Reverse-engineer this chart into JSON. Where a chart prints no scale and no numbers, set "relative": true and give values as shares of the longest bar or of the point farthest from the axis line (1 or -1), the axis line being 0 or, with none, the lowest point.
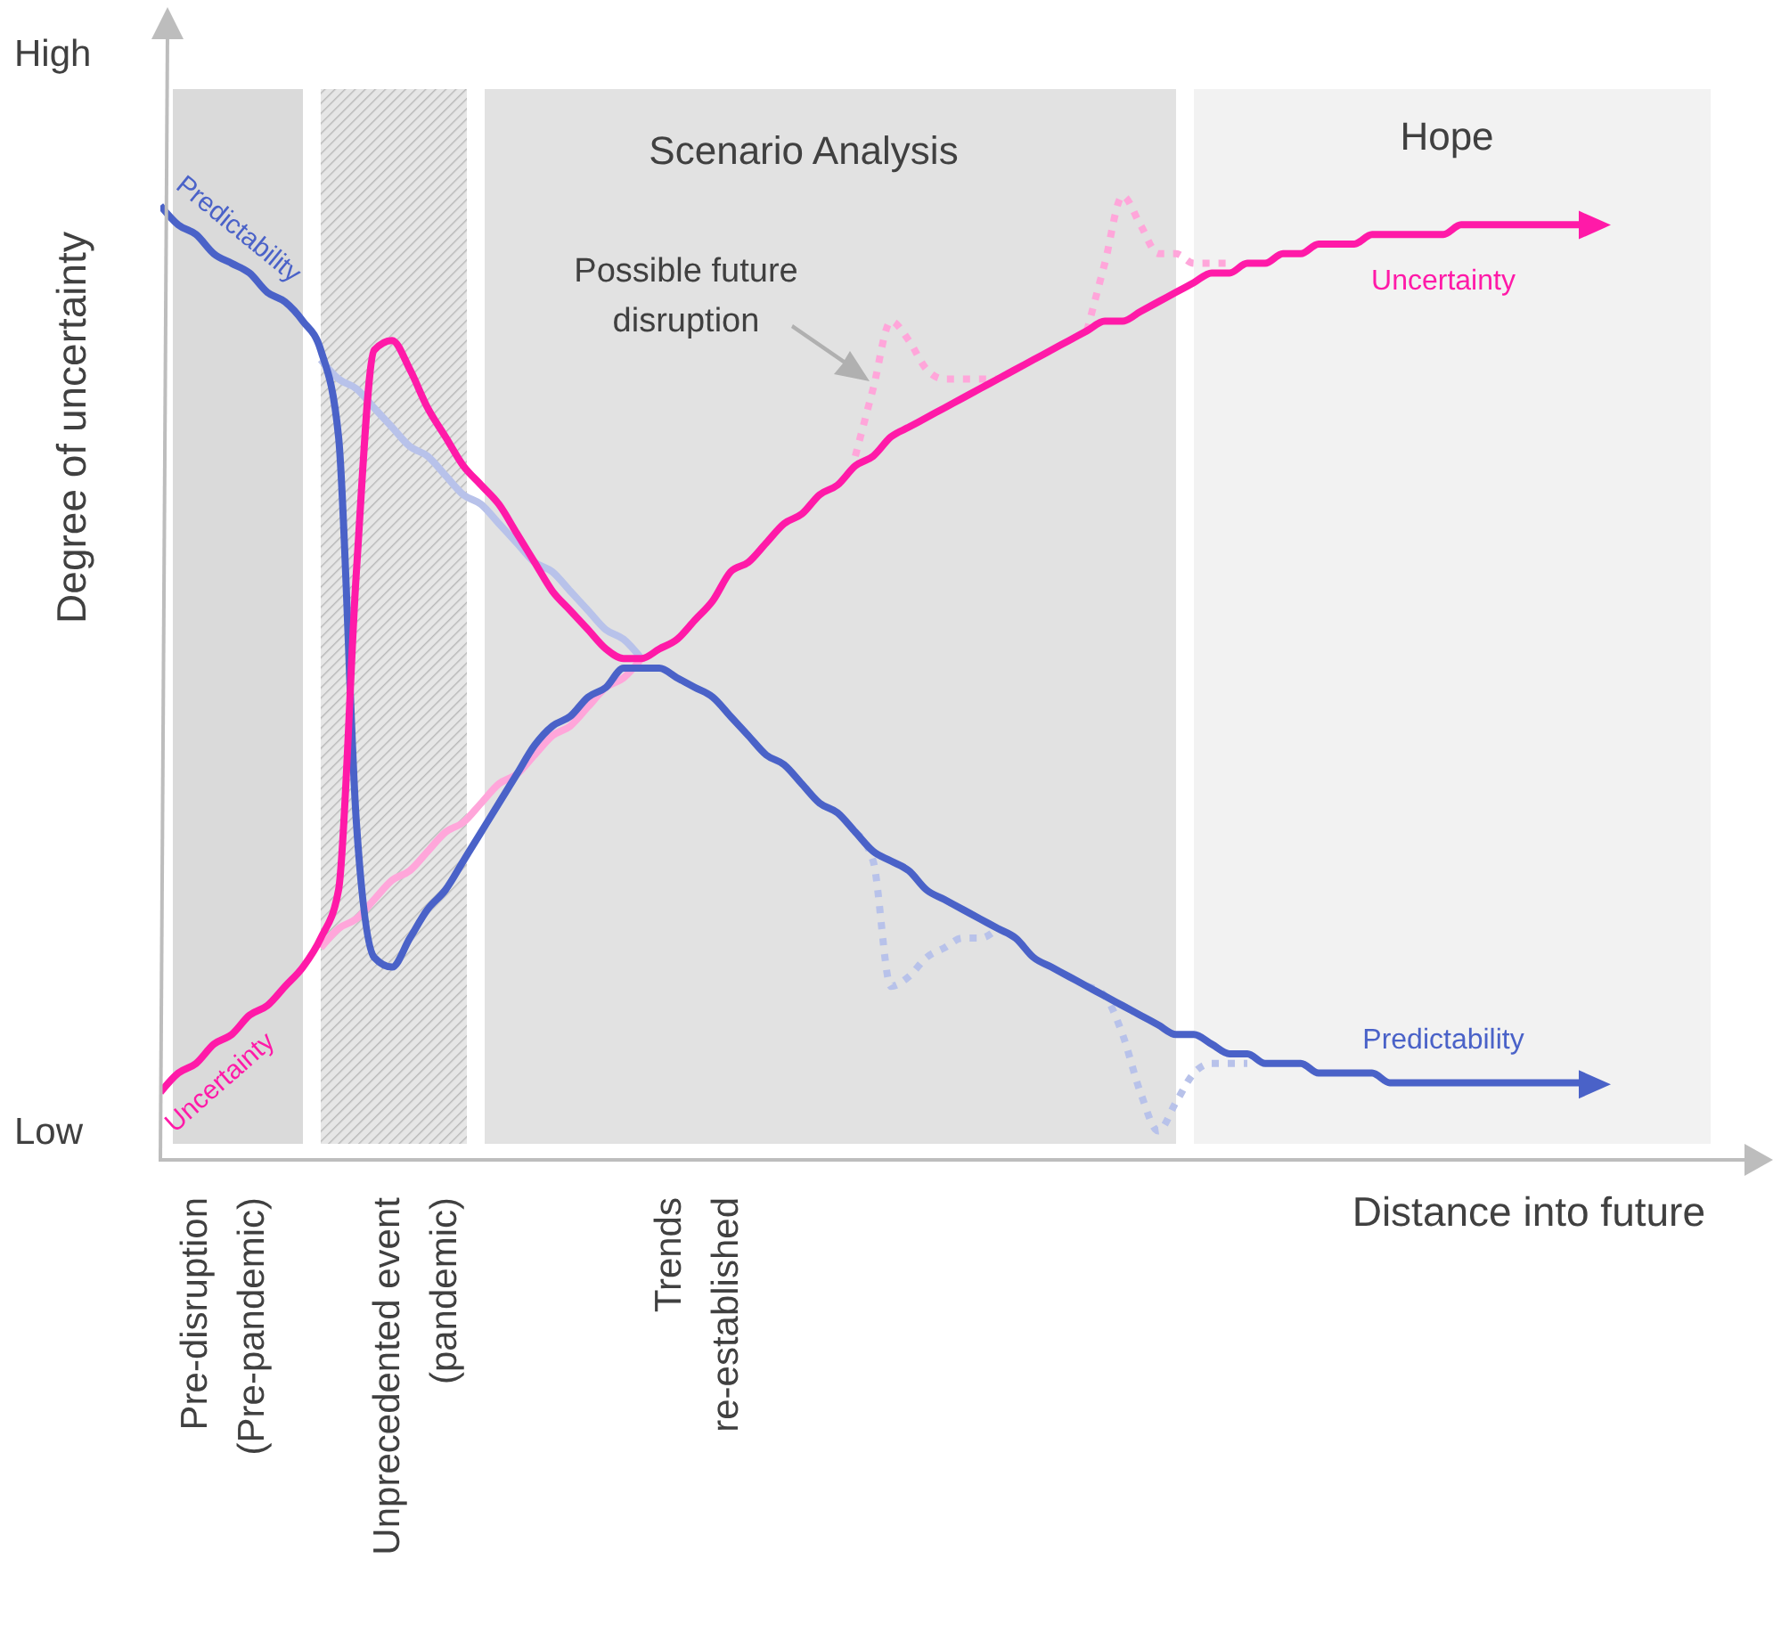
{
  "chart_data": {
    "type": "line",
    "relative": true,
    "xlabel": "Distance into future",
    "ylabel": "Degree of uncertainty",
    "categories": [
      null,
      null,
      null,
      null,
      null,
      null,
      null,
      null,
      null,
      null,
      null,
      null,
      null,
      null,
      null,
      null,
      null,
      null,
      null,
      null,
      null,
      null,
      null,
      null,
      null,
      null,
      null,
      null,
      null,
      null,
      null,
      null,
      null,
      null,
      null,
      null,
      null,
      null,
      null,
      null,
      null,
      null,
      null,
      null,
      null,
      null,
      null,
      null,
      null,
      null,
      null,
      null,
      null,
      null,
      null,
      null,
      null,
      null,
      null,
      null,
      null,
      null,
      null,
      null,
      null,
      null,
      null,
      null,
      null,
      null,
      null,
      null,
      null,
      null,
      null,
      null,
      null,
      null,
      null,
      null,
      null
    ],
    "series": [
      {
        "color": "#b8c2ea",
        "values": [
          null,
          null,
          null,
          null,
          null,
          null,
          null,
          null,
          null,
          0.83,
          0.81,
          0.8,
          0.78,
          0.76,
          0.74,
          0.73,
          0.71,
          0.69,
          0.68,
          0.66,
          0.64,
          0.62,
          0.61,
          0.59,
          0.57,
          0.55,
          0.54,
          0.52,
          null,
          null,
          null,
          null,
          null,
          null,
          null,
          null,
          null,
          null,
          null,
          null,
          null,
          null,
          null,
          null,
          null,
          null,
          null,
          null,
          null,
          null,
          null,
          null,
          null,
          null,
          null,
          null,
          null,
          null,
          null,
          null,
          null,
          null,
          null,
          null,
          null,
          null,
          null,
          null,
          null,
          null,
          null,
          null,
          null,
          null,
          null,
          null,
          null,
          null,
          null,
          null,
          null
        ]
      },
      {
        "color": "#ffa6da",
        "values": [
          null,
          null,
          null,
          null,
          null,
          null,
          null,
          null,
          null,
          0.22,
          0.24,
          0.25,
          0.27,
          0.29,
          0.3,
          0.32,
          0.34,
          0.35,
          0.37,
          0.39,
          0.4,
          0.42,
          0.44,
          0.45,
          0.47,
          0.49,
          0.5,
          0.52,
          null,
          null,
          null,
          null,
          null,
          null,
          null,
          null,
          null,
          null,
          null,
          null,
          null,
          null,
          null,
          null,
          null,
          null,
          null,
          null,
          null,
          null,
          null,
          null,
          null,
          null,
          null,
          null,
          null,
          null,
          null,
          null,
          null,
          null,
          null,
          null,
          null,
          null,
          null,
          null,
          null,
          null,
          null,
          null,
          null,
          null,
          null,
          null,
          null,
          null,
          null,
          null,
          null
        ]
      },
      {
        "color": "#ffa6da",
        "line_style": "dotted",
        "values": [
          null,
          null,
          null,
          null,
          null,
          null,
          null,
          null,
          null,
          null,
          null,
          null,
          null,
          null,
          null,
          null,
          null,
          null,
          null,
          null,
          null,
          null,
          null,
          null,
          null,
          null,
          null,
          null,
          null,
          null,
          null,
          null,
          null,
          null,
          null,
          null,
          null,
          null,
          null,
          0.73,
          0.8,
          0.87,
          0.85,
          0.82,
          0.81,
          0.81,
          0.81,
          0.81,
          null,
          null,
          null,
          null,
          null,
          null,
          null,
          null,
          null,
          null,
          null,
          null,
          null,
          null,
          null,
          null,
          null,
          null,
          null,
          null,
          null,
          null,
          null,
          null,
          null,
          null,
          null,
          null,
          null,
          null,
          null,
          null,
          null
        ]
      },
      {
        "color": "#ffa6da",
        "line_style": "dotted",
        "values": [
          null,
          null,
          null,
          null,
          null,
          null,
          null,
          null,
          null,
          null,
          null,
          null,
          null,
          null,
          null,
          null,
          null,
          null,
          null,
          null,
          null,
          null,
          null,
          null,
          null,
          null,
          null,
          null,
          null,
          null,
          null,
          null,
          null,
          null,
          null,
          null,
          null,
          null,
          null,
          null,
          null,
          null,
          null,
          null,
          null,
          null,
          null,
          null,
          null,
          null,
          null,
          null,
          0.86,
          0.93,
          1.0,
          0.97,
          0.94,
          0.94,
          0.93,
          0.93,
          0.93,
          null,
          null,
          null,
          null,
          null,
          null,
          null,
          null,
          null,
          null,
          null,
          null,
          null,
          null,
          null,
          null,
          null,
          null,
          null,
          null
        ]
      },
      {
        "color": "#b8c2ea",
        "line_style": "dotted",
        "values": [
          null,
          null,
          null,
          null,
          null,
          null,
          null,
          null,
          null,
          null,
          null,
          null,
          null,
          null,
          null,
          null,
          null,
          null,
          null,
          null,
          null,
          null,
          null,
          null,
          null,
          null,
          null,
          null,
          null,
          null,
          null,
          null,
          null,
          null,
          null,
          null,
          null,
          null,
          null,
          0.34,
          0.31,
          0.18,
          0.19,
          0.21,
          0.22,
          0.23,
          0.23,
          0.24,
          null,
          null,
          null,
          null,
          null,
          null,
          null,
          null,
          null,
          null,
          null,
          null,
          null,
          null,
          null,
          null,
          null,
          null,
          null,
          null,
          null,
          null,
          null,
          null,
          null,
          null,
          null,
          null,
          null,
          null,
          null,
          null,
          null
        ]
      },
      {
        "color": "#b8c2ea",
        "line_style": "dotted",
        "values": [
          null,
          null,
          null,
          null,
          null,
          null,
          null,
          null,
          null,
          null,
          null,
          null,
          null,
          null,
          null,
          null,
          null,
          null,
          null,
          null,
          null,
          null,
          null,
          null,
          null,
          null,
          null,
          null,
          null,
          null,
          null,
          null,
          null,
          null,
          null,
          null,
          null,
          null,
          null,
          null,
          null,
          null,
          null,
          null,
          null,
          null,
          null,
          null,
          null,
          null,
          null,
          null,
          0.18,
          0.17,
          0.13,
          0.07,
          0.03,
          0.06,
          0.09,
          0.1,
          0.1,
          0.1,
          null,
          null,
          null,
          null,
          null,
          null,
          null,
          null,
          null,
          null,
          null,
          null,
          null,
          null,
          null,
          null,
          null,
          null,
          null
        ]
      },
      {
        "name": "Predictability",
        "color": "#4a62c8",
        "values": [
          0.99,
          0.97,
          0.96,
          0.94,
          0.93,
          0.92,
          0.9,
          0.89,
          0.87,
          0.84,
          0.75,
          0.35,
          0.21,
          0.2,
          0.23,
          0.26,
          0.28,
          0.31,
          0.34,
          0.37,
          0.4,
          0.43,
          0.45,
          0.46,
          0.48,
          0.49,
          0.51,
          0.51,
          0.51,
          0.5,
          0.49,
          0.48,
          0.46,
          0.44,
          0.42,
          0.41,
          0.39,
          0.37,
          0.36,
          0.34,
          0.32,
          0.31,
          0.3,
          0.28,
          0.27,
          0.26,
          0.25,
          0.24,
          0.23,
          0.21,
          0.2,
          0.19,
          0.18,
          0.17,
          0.16,
          0.15,
          0.14,
          0.13,
          0.13,
          0.12,
          0.11,
          0.11,
          0.1,
          0.1,
          0.1,
          0.09,
          0.09,
          0.09,
          0.09,
          0.08,
          0.08,
          0.08,
          0.08,
          0.08,
          0.08,
          0.08,
          0.08,
          0.08,
          0.08,
          0.08,
          0.08
        ]
      },
      {
        "name": "Uncertainty",
        "color": "#ff1aa8",
        "values": [
          0.07,
          0.09,
          0.1,
          0.12,
          0.13,
          0.15,
          0.16,
          0.18,
          0.2,
          0.23,
          0.28,
          0.61,
          0.84,
          0.85,
          0.82,
          0.78,
          0.75,
          0.72,
          0.7,
          0.68,
          0.65,
          0.62,
          0.59,
          0.57,
          0.55,
          0.53,
          0.52,
          0.52,
          0.53,
          0.54,
          0.56,
          0.58,
          0.61,
          0.62,
          0.64,
          0.66,
          0.67,
          0.69,
          0.7,
          0.72,
          0.73,
          0.75,
          0.76,
          0.77,
          0.78,
          0.79,
          0.8,
          0.81,
          0.82,
          0.83,
          0.84,
          0.85,
          0.86,
          0.87,
          0.87,
          0.88,
          0.89,
          0.9,
          0.91,
          0.92,
          0.92,
          0.93,
          0.93,
          0.94,
          0.94,
          0.95,
          0.95,
          0.95,
          0.96,
          0.96,
          0.96,
          0.96,
          0.96,
          0.97,
          0.97,
          0.97,
          0.97,
          0.97,
          0.97,
          0.97,
          0.97
        ]
      }
    ],
    "annotations": [
      "High",
      "Low",
      "Scenario Analysis",
      "Hope",
      "Possible future disruption",
      "Pre-disruption (Pre-pandemic)",
      "Unprecedented event (pandemic)",
      "Trends re-established"
    ]
  }
}
